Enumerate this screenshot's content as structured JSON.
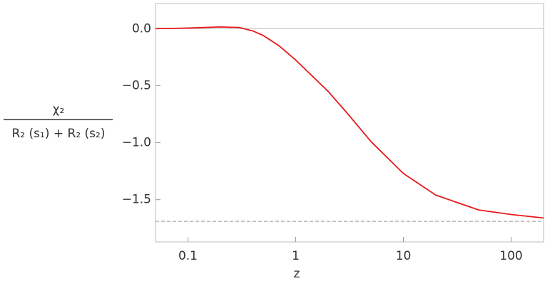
{
  "chart_data": {
    "type": "line",
    "log_x": true,
    "x_label": "z",
    "y_label": {
      "numerator": "χ₂",
      "denominator": "R₂ (s₁) + R₂ (s₂)"
    },
    "x": [
      0.05,
      0.1,
      0.2,
      0.3,
      0.4,
      0.5,
      0.7,
      1,
      2,
      3,
      5,
      10,
      20,
      50,
      100,
      200
    ],
    "series": [
      {
        "color": "#e8191c",
        "values": [
          0.0,
          0.005,
          0.015,
          0.01,
          -0.02,
          -0.06,
          -0.15,
          -0.275,
          -0.55,
          -0.74,
          -0.99,
          -1.27,
          -1.46,
          -1.59,
          -1.63,
          -1.66
        ]
      }
    ],
    "reference_lines": [
      {
        "value": 0,
        "color": "#c8c8c8",
        "dashed": false
      },
      {
        "value": -1.69,
        "color": "#aaaaaa",
        "dashed": true
      }
    ],
    "xlim": [
      0.05,
      200
    ],
    "ylim": [
      -1.87,
      0.22
    ],
    "xticks": [
      0.1,
      1,
      10,
      100
    ],
    "yticks": [
      {
        "value": 0,
        "label": "0.0"
      },
      {
        "value": -0.5,
        "label": "−0.5"
      },
      {
        "value": -1,
        "label": "−1.0"
      },
      {
        "value": -1.5,
        "label": "−1.5"
      }
    ]
  }
}
